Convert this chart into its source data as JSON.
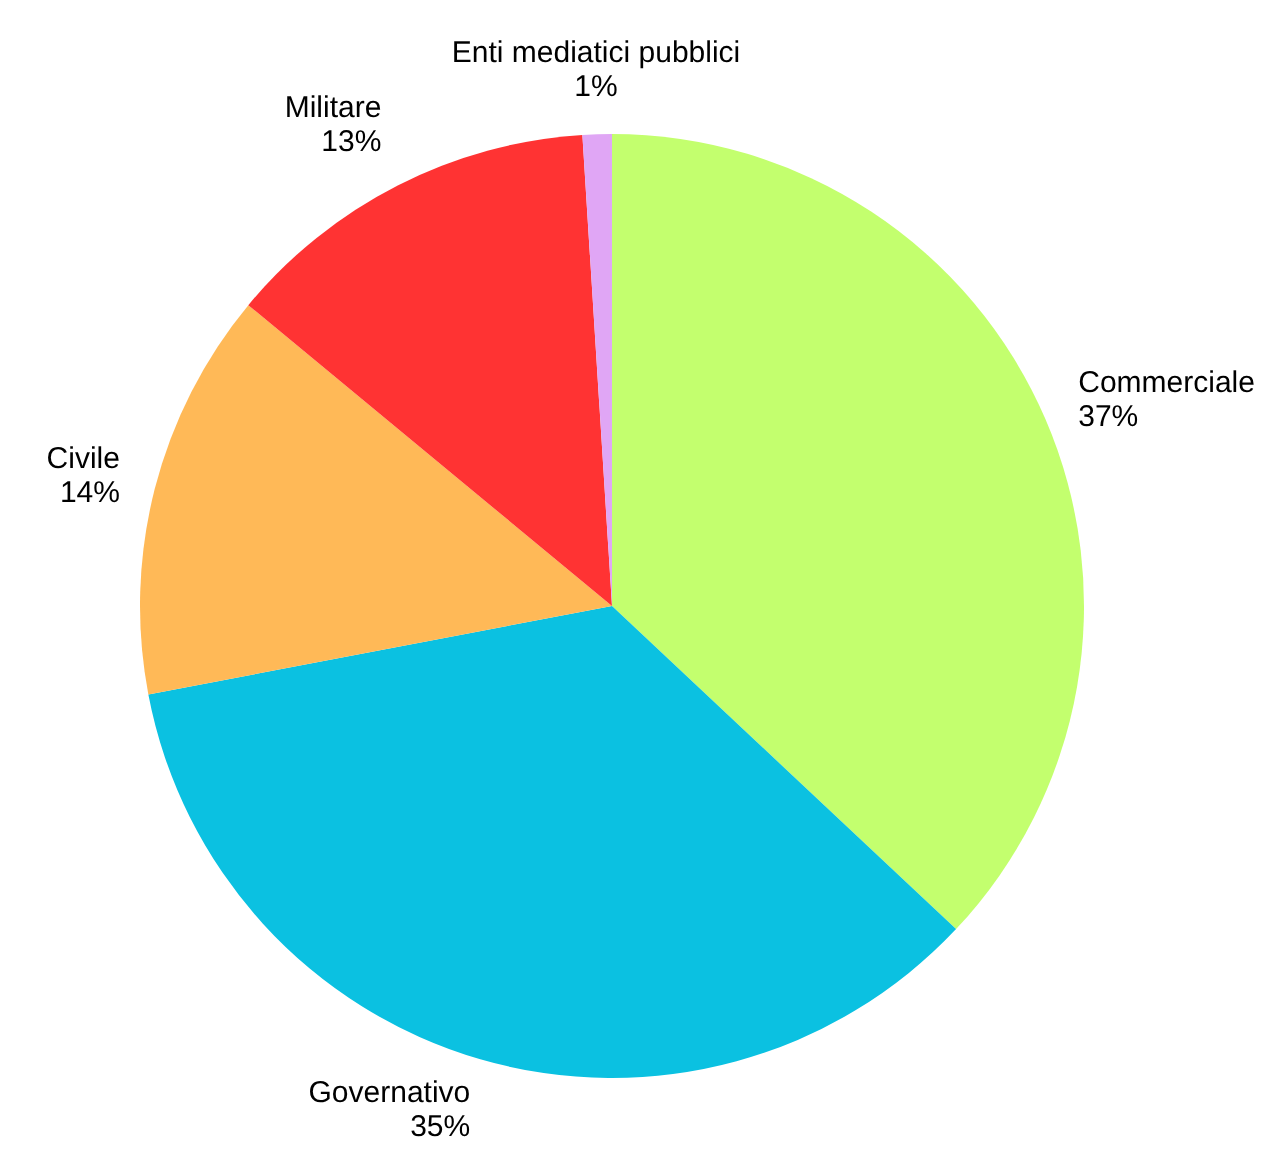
{
  "chart_data": {
    "type": "pie",
    "categories": [
      "Commerciale",
      "Governativo",
      "Civile",
      "Militare",
      "Enti mediatici pubblici"
    ],
    "values": [
      37,
      35,
      14,
      13,
      1
    ],
    "value_labels": [
      "37%",
      "35%",
      "14%",
      "13%",
      "1%"
    ],
    "colors": [
      "#c3ff6e",
      "#0bc1e1",
      "#ffb957",
      "#ff3333",
      "#e0a6f5"
    ],
    "legend": false
  }
}
